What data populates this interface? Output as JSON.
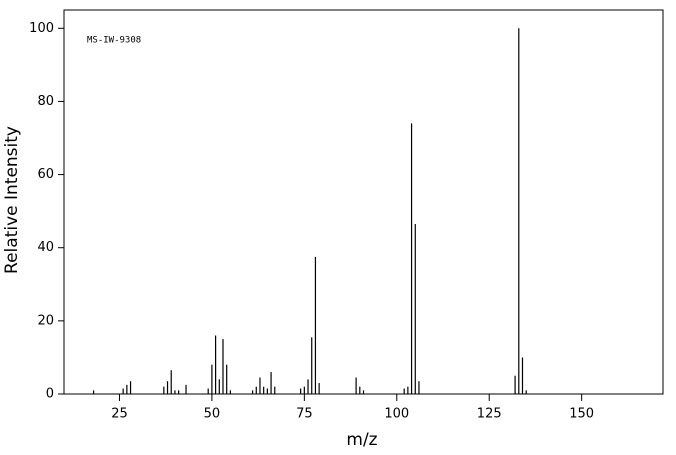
{
  "chart_data": {
    "type": "stem",
    "annotation": "MS-IW-9308",
    "x_label": "m/z",
    "y_label": "Relative Intensity",
    "color": "#000000",
    "x": [
      18,
      26,
      27,
      28,
      37,
      38,
      39,
      40,
      41,
      43,
      49,
      50,
      51,
      52,
      53,
      54,
      55,
      61,
      62,
      63,
      64,
      65,
      66,
      67,
      74,
      75,
      76,
      77,
      78,
      79,
      89,
      90,
      91,
      102,
      103,
      104,
      105,
      106,
      132,
      133,
      134,
      135
    ],
    "values": [
      1,
      1.5,
      2.5,
      3.5,
      2,
      3.5,
      6.5,
      1,
      1,
      2.5,
      1.5,
      8,
      16,
      4,
      15,
      8,
      1,
      1,
      2,
      4.5,
      2,
      1.5,
      6,
      2,
      1.5,
      2,
      4,
      15.5,
      37.5,
      3,
      4.5,
      2,
      1,
      1.5,
      2,
      74,
      46.5,
      3.5,
      5,
      100,
      10,
      1
    ],
    "xlim": [
      10,
      172
    ],
    "ylim": [
      0,
      105
    ],
    "xticks": [
      25,
      50,
      75,
      100,
      125,
      150
    ],
    "yticks": [
      0,
      20,
      40,
      60,
      80,
      100
    ]
  }
}
